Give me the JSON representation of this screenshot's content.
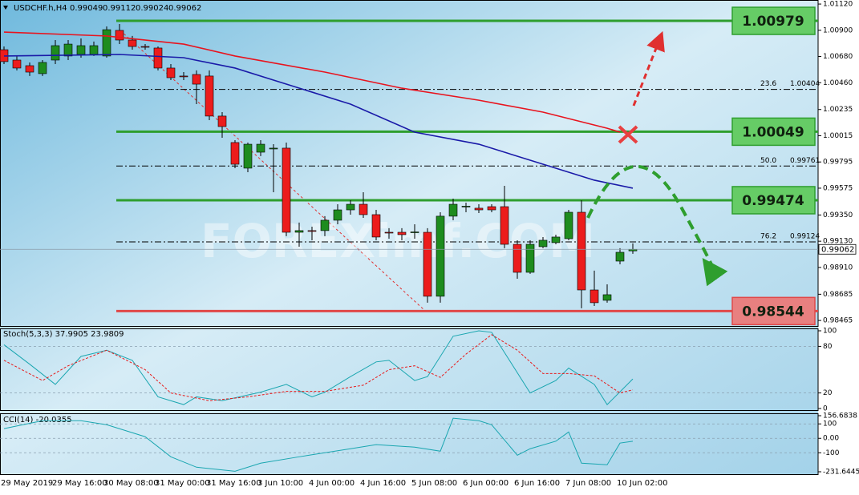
{
  "chart_data": [
    {
      "type": "candlestick",
      "title": "USDCHF.h,H4",
      "watermark": "FOREXimf.COM",
      "categories": [
        "29 May 2019",
        null,
        null,
        null,
        "29 May 16:00",
        null,
        null,
        null,
        "30 May 08:00",
        null,
        null,
        null,
        "31 May 00:00",
        null,
        null,
        null,
        "31 May 16:00",
        null,
        null,
        null,
        "3 Jun 10:00",
        null,
        null,
        null,
        "4 Jun 00:00",
        null,
        null,
        null,
        "4 Jun 16:00",
        null,
        null,
        null,
        "5 Jun 08:00",
        null,
        null,
        null,
        "6 Jun 00:00",
        null,
        null,
        null,
        "6 Jun 16:00",
        null,
        null,
        null,
        "7 Jun 08:00",
        null,
        null,
        null,
        "10 Jun 02:00",
        null
      ],
      "open": [
        1.00737,
        1.0065,
        1.00603,
        1.00536,
        1.0065,
        1.00684,
        1.00697,
        1.00697,
        1.00684,
        1.00899,
        1.00818,
        1.00764,
        1.00751,
        1.00583,
        1.00516,
        1.00529,
        1.00516,
        1.0018,
        0.99958,
        0.99743,
        0.99877,
        0.99904,
        0.99911,
        0.99205,
        0.99219,
        0.99219,
        0.99306,
        0.99393,
        0.9944,
        0.99353,
        0.99205,
        0.99205,
        0.99205,
        0.99205,
        0.98668,
        0.9934,
        0.9942,
        0.99407,
        0.9942,
        0.9942,
        0.99104,
        0.98869,
        0.99084,
        0.99118,
        0.99151,
        0.99373,
        0.98721,
        0.98634,
        0.98963,
        0.99049
      ],
      "high": [
        1.00764,
        1.00684,
        1.0063,
        1.0065,
        1.00818,
        1.00818,
        1.00831,
        1.00805,
        1.00932,
        1.00952,
        1.00852,
        1.00784,
        1.00764,
        1.00616,
        1.00549,
        1.00563,
        1.00563,
        1.00213,
        0.99978,
        0.99958,
        0.99978,
        0.99944,
        0.99958,
        0.99286,
        0.99252,
        0.9934,
        0.9944,
        0.99474,
        0.99541,
        0.99393,
        0.99239,
        0.99239,
        0.99272,
        0.99239,
        0.99373,
        0.99487,
        0.99454,
        0.9944,
        0.9944,
        0.99595,
        0.99138,
        0.99138,
        0.99165,
        0.99185,
        0.99393,
        0.99474,
        0.98883,
        0.98768,
        0.99071,
        0.99112
      ],
      "low": [
        1.00616,
        1.00563,
        1.00516,
        1.00516,
        1.00616,
        1.0065,
        1.0067,
        1.00684,
        1.0067,
        1.00784,
        1.00737,
        1.00737,
        1.00563,
        1.00482,
        1.00482,
        1.0028,
        1.00146,
        0.99998,
        0.99743,
        0.99709,
        0.99844,
        0.99541,
        0.99172,
        0.99084,
        0.99138,
        0.99172,
        0.99272,
        0.99353,
        0.99326,
        0.99138,
        0.99151,
        0.99138,
        0.99151,
        0.98614,
        0.98614,
        0.99306,
        0.99373,
        0.99366,
        0.99373,
        0.99071,
        0.98815,
        0.98856,
        0.99071,
        0.99104,
        0.99138,
        0.98567,
        0.98587,
        0.98614,
        0.98936,
        0.99024
      ],
      "close": [
        1.00637,
        1.00583,
        1.00549,
        1.0063,
        1.00771,
        1.00784,
        1.00771,
        1.00771,
        1.00905,
        1.00818,
        1.00764,
        1.0076,
        1.00583,
        1.00502,
        1.00512,
        1.00448,
        1.0018,
        1.00092,
        0.99776,
        0.99944,
        0.99944,
        0.99911,
        0.99205,
        0.99219,
        0.99215,
        0.99306,
        0.99393,
        0.9944,
        0.99353,
        0.99165,
        0.99202,
        0.99185,
        0.99208,
        0.98668,
        0.9934,
        0.9944,
        0.99424,
        0.99393,
        0.99393,
        0.99104,
        0.98869,
        0.99104,
        0.99138,
        0.99165,
        0.99373,
        0.98721,
        0.98614,
        0.98681,
        0.99037,
        0.99062
      ],
      "up_color": "#1e8c1e",
      "down_color": "#ec1c1c",
      "ylim": [
        0.98432,
        1.01154
      ],
      "yticks": [
        {
          "value": 1.0112,
          "label": "1.01120"
        },
        {
          "value": 1.009,
          "label": "1.00900"
        },
        {
          "value": 1.0068,
          "label": "1.00680"
        },
        {
          "value": 1.0046,
          "label": "1.00460"
        },
        1.00235,
        1.00015,
        0.99795,
        0.99575,
        {
          "value": 0.9935,
          "label": "0.99350"
        },
        {
          "value": 0.9913,
          "label": "0.99130"
        },
        {
          "value": 0.9891,
          "label": "0.98910"
        },
        0.98685,
        0.98465
      ],
      "series": [
        {
          "color": "#e8141e",
          "x": [
            0,
            8,
            14,
            18,
            25,
            31,
            37,
            42,
            47,
            48
          ],
          "values": [
            1.00885,
            1.00852,
            1.00784,
            1.00684,
            1.00549,
            1.00414,
            1.00313,
            1.00213,
            1.00078,
            1.00045
          ]
        },
        {
          "color": "#1a1aa8",
          "x": [
            0,
            9,
            14,
            18,
            21,
            27,
            32,
            37,
            42,
            46,
            49
          ],
          "values": [
            1.00684,
            1.00697,
            1.0067,
            1.00583,
            1.00482,
            1.0028,
            1.00045,
            0.99944,
            0.99776,
            0.99642,
            0.99575
          ]
        }
      ],
      "levels": [
        {
          "value": 1.00979,
          "color": "#2e9e2e",
          "box_color": "#66cc66"
        },
        {
          "value": 1.00049,
          "color": "#2e9e2e",
          "box_color": "#66cc66"
        },
        {
          "value": 0.99474,
          "color": "#2e9e2e",
          "box_color": "#66cc66"
        },
        {
          "value": 0.98544,
          "color": "#e04848",
          "box_color": "#e88080"
        }
      ],
      "fib_levels": [
        {
          "label": "23.6",
          "value": 1.00404
        },
        {
          "label": "50.0",
          "value": 0.99761
        },
        {
          "label": "76.2",
          "value": 0.99124
        }
      ]
    },
    {
      "type": "line",
      "title": "Stoch(5,3,3) 37.9905 23.9809",
      "ylim": [
        0,
        100
      ],
      "yticks": [
        100,
        80,
        20,
        0
      ],
      "series": [
        {
          "color": "#1aa6b0",
          "x": [
            0,
            2,
            4,
            6,
            8,
            10,
            12,
            14,
            15,
            17,
            20,
            22,
            24,
            25,
            27,
            29,
            30,
            32,
            33,
            35,
            37,
            38,
            39,
            41,
            43,
            44,
            46,
            47,
            49
          ],
          "values": [
            82,
            57,
            31,
            67,
            75,
            62,
            15,
            5,
            15,
            10,
            21,
            31,
            15,
            21,
            41,
            60,
            62,
            36,
            41,
            93,
            100,
            98,
            72,
            20,
            36,
            52,
            31,
            5,
            38
          ]
        },
        {
          "color": "#e81818",
          "dash": true,
          "x": [
            0,
            3,
            5,
            8,
            11,
            13,
            16,
            19,
            22,
            25,
            28,
            30,
            32,
            34,
            36,
            38,
            40,
            42,
            44,
            46,
            48,
            49
          ],
          "values": [
            62,
            36,
            55,
            75,
            50,
            20,
            10,
            15,
            22,
            22,
            30,
            50,
            55,
            40,
            70,
            95,
            75,
            45,
            45,
            42,
            20,
            24
          ]
        }
      ]
    },
    {
      "type": "line",
      "title": "CCI(14) -20.0355",
      "ylim": [
        -231.6445,
        156.6838
      ],
      "yticks": [
        156.6838,
        100,
        {
          "value": 0,
          "label": "0.00"
        },
        -100,
        -231.6445
      ],
      "series": [
        {
          "color": "#1aa6b0",
          "x": [
            0,
            3,
            6,
            8,
            11,
            13,
            15,
            18,
            20,
            23,
            27,
            29,
            32,
            34,
            35,
            37,
            38,
            40,
            41,
            43,
            44,
            45,
            47,
            48,
            49
          ],
          "values": [
            67,
            122,
            122,
            94,
            11,
            -128,
            -200,
            -228,
            -172,
            -128,
            -72,
            -44,
            -61,
            -89,
            139,
            122,
            94,
            -117,
            -72,
            -20,
            44,
            -172,
            -183,
            -33,
            -20
          ]
        }
      ]
    }
  ]
}
